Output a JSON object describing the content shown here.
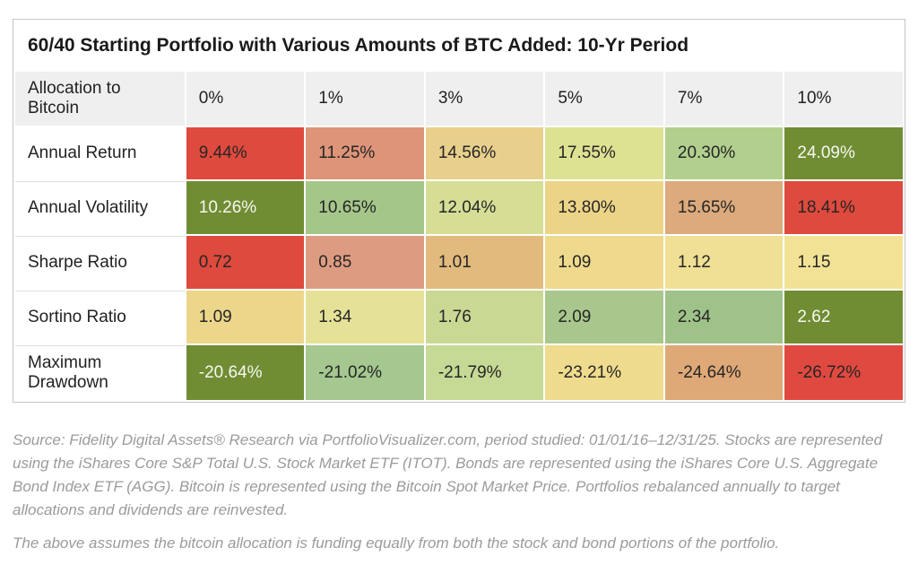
{
  "title": "60/40 Starting Portfolio with Various Amounts of BTC Added: 10-Yr Period",
  "chart_data": {
    "type": "table",
    "subtype": "heatmap-table",
    "corner_label": "Allocation to Bitcoin",
    "columns": [
      "0%",
      "1%",
      "3%",
      "5%",
      "7%",
      "10%"
    ],
    "rows": [
      {
        "label": "Annual Return",
        "values": [
          "9.44%",
          "11.25%",
          "14.56%",
          "17.55%",
          "20.30%",
          "24.09%"
        ],
        "bg": [
          "#de4a3d",
          "#dd9478",
          "#e8cf8b",
          "#dde292",
          "#b2cf8e",
          "#708d33"
        ],
        "fg": [
          "#262626",
          "#262626",
          "#262626",
          "#262626",
          "#262626",
          "#f7f7f2"
        ]
      },
      {
        "label": "Annual Volatility",
        "values": [
          "10.26%",
          "10.65%",
          "12.04%",
          "13.80%",
          "15.65%",
          "18.41%"
        ],
        "bg": [
          "#708d33",
          "#a5c689",
          "#d6de96",
          "#ecd487",
          "#dcaa7c",
          "#de4a3d"
        ],
        "fg": [
          "#f7f7f2",
          "#262626",
          "#262626",
          "#262626",
          "#262626",
          "#262626"
        ]
      },
      {
        "label": "Sharpe Ratio",
        "values": [
          "0.72",
          "0.85",
          "1.01",
          "1.09",
          "1.12",
          "1.15"
        ],
        "bg": [
          "#de4a3d",
          "#dd9c82",
          "#e2ba7e",
          "#eed98c",
          "#f0e095",
          "#f1e296"
        ],
        "fg": [
          "#262626",
          "#262626",
          "#262626",
          "#262626",
          "#262626",
          "#262626"
        ]
      },
      {
        "label": "Sortino Ratio",
        "values": [
          "1.09",
          "1.34",
          "1.76",
          "2.09",
          "2.34",
          "2.62"
        ],
        "bg": [
          "#ebd68a",
          "#e5e297",
          "#c9d893",
          "#a9c78c",
          "#9fc288",
          "#708d33"
        ],
        "fg": [
          "#262626",
          "#262626",
          "#262626",
          "#262626",
          "#262626",
          "#f7f7f2"
        ]
      },
      {
        "label": "Maximum Drawdown",
        "values": [
          "-20.64%",
          "-21.02%",
          "-21.79%",
          "-23.21%",
          "-24.64%",
          "-26.72%"
        ],
        "bg": [
          "#708d33",
          "#a4c88f",
          "#c6d995",
          "#efdb8d",
          "#dfa877",
          "#e0493f"
        ],
        "fg": [
          "#f7f7f2",
          "#262626",
          "#262626",
          "#262626",
          "#262626",
          "#262626"
        ]
      }
    ],
    "legend_position": "none",
    "grid": "cell-borders"
  },
  "footer": {
    "source_note": "Source: Fidelity Digital Assets® Research via PortfolioVisualizer.com, period studied: 01/01/16–12/31/25. Stocks are represented using the iShares Core S&P Total U.S. Stock Market ETF (ITOT). Bonds are represented using the iShares Core U.S. Aggregate Bond Index ETF (AGG). Bitcoin is represented using the Bitcoin Spot Market Price. Portfolios rebalanced annually to target allocations and dividends are reinvested.",
    "assumption_note": "The above assumes the bitcoin allocation is funding equally from both the stock and bond portions of the portfolio."
  },
  "palette": {
    "table_border": "#c4c4c4",
    "header_bg": "#efefef",
    "title_text": "#1a1a1a",
    "cell_text_dark": "#262626",
    "cell_text_light": "#f7f7f2",
    "footer_text": "#9b9b9b",
    "heat_low": "#de4a3d",
    "heat_mid": "#f0e095",
    "heat_high": "#708d33"
  }
}
